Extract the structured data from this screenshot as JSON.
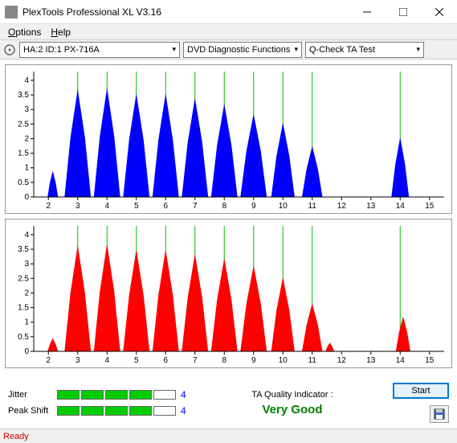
{
  "window": {
    "title": "PlexTools Professional XL V3.16"
  },
  "menu": {
    "options": "Options",
    "help": "Help"
  },
  "toolbar": {
    "drive": "HA:2 ID:1   PX-716A",
    "function": "DVD Diagnostic Functions",
    "test": "Q-Check TA Test"
  },
  "chart": {
    "y_ticks": [
      0,
      0.5,
      1,
      1.5,
      2,
      2.5,
      3,
      3.5,
      4
    ],
    "x_ticks": [
      2,
      3,
      4,
      5,
      6,
      7,
      8,
      9,
      10,
      11,
      12,
      13,
      14,
      15
    ],
    "x_min": 1.5,
    "x_max": 15.5,
    "y_min": 0,
    "y_max": 4.3,
    "green_lines": [
      3,
      4,
      5,
      6,
      7,
      8,
      9,
      10,
      11,
      14
    ],
    "top_color": "#0000ff",
    "bottom_color": "#ff0000",
    "bg": "#ffffff",
    "axis_color": "#000000",
    "grid_color": "#00c000",
    "top_peaks": [
      {
        "c": 2.15,
        "h": 0.9,
        "w": 0.18
      },
      {
        "c": 3.0,
        "h": 3.7,
        "w": 0.45
      },
      {
        "c": 4.0,
        "h": 3.75,
        "w": 0.45
      },
      {
        "c": 5.0,
        "h": 3.55,
        "w": 0.45
      },
      {
        "c": 6.0,
        "h": 3.55,
        "w": 0.45
      },
      {
        "c": 7.0,
        "h": 3.4,
        "w": 0.45
      },
      {
        "c": 8.0,
        "h": 3.2,
        "w": 0.45
      },
      {
        "c": 9.0,
        "h": 2.85,
        "w": 0.45
      },
      {
        "c": 10.0,
        "h": 2.55,
        "w": 0.4
      },
      {
        "c": 11.0,
        "h": 1.75,
        "w": 0.35
      },
      {
        "c": 14.0,
        "h": 2.05,
        "w": 0.3
      }
    ],
    "bottom_peaks": [
      {
        "c": 2.15,
        "h": 0.45,
        "w": 0.18
      },
      {
        "c": 3.0,
        "h": 3.65,
        "w": 0.45
      },
      {
        "c": 4.0,
        "h": 3.7,
        "w": 0.45
      },
      {
        "c": 5.0,
        "h": 3.5,
        "w": 0.45
      },
      {
        "c": 6.0,
        "h": 3.5,
        "w": 0.45
      },
      {
        "c": 7.0,
        "h": 3.35,
        "w": 0.45
      },
      {
        "c": 8.0,
        "h": 3.2,
        "w": 0.45
      },
      {
        "c": 9.0,
        "h": 2.95,
        "w": 0.45
      },
      {
        "c": 10.0,
        "h": 2.55,
        "w": 0.4
      },
      {
        "c": 11.0,
        "h": 1.65,
        "w": 0.35
      },
      {
        "c": 11.6,
        "h": 0.3,
        "w": 0.15
      },
      {
        "c": 14.1,
        "h": 1.2,
        "w": 0.25
      }
    ]
  },
  "metrics": {
    "jitter_label": "Jitter",
    "jitter_value": "4",
    "jitter_filled": 4,
    "peakshift_label": "Peak Shift",
    "peakshift_value": "4",
    "peakshift_filled": 4,
    "segments": 5
  },
  "ta": {
    "label": "TA Quality Indicator :",
    "value": "Very Good"
  },
  "buttons": {
    "start": "Start"
  },
  "status": {
    "text": "Ready"
  }
}
